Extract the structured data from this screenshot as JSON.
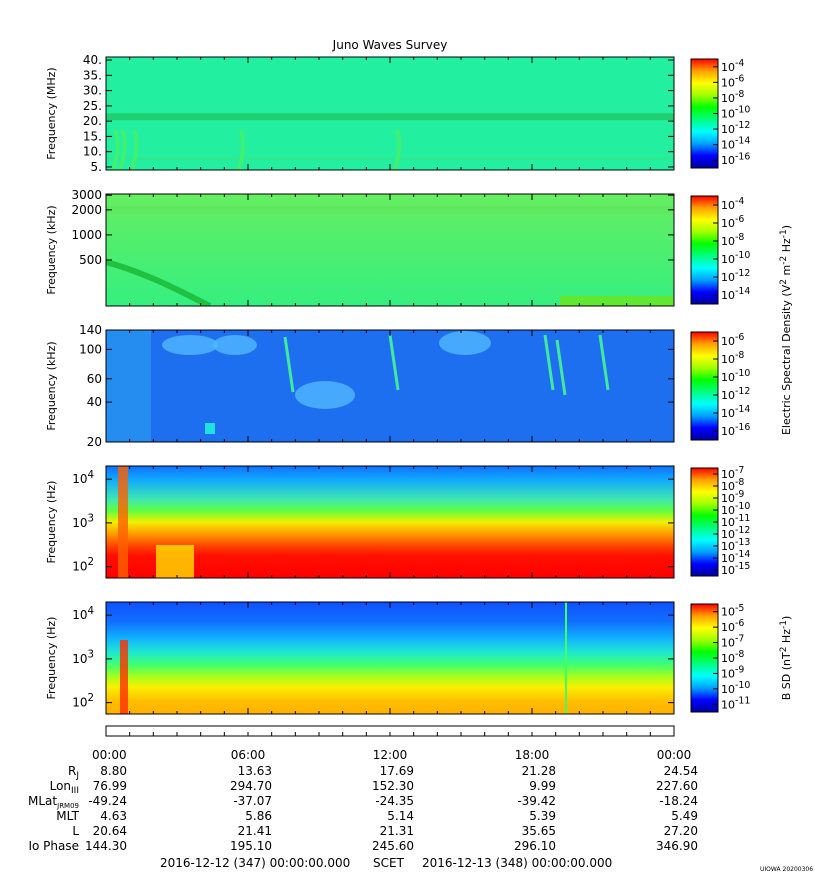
{
  "chart_data": {
    "type": "heatmap",
    "title": "Juno Waves Survey",
    "panels": [
      {
        "id": "hfr-high",
        "ylabel": "Frequency (MHz)",
        "yscale": "linear",
        "ylim": [
          4,
          41
        ],
        "yticks": [
          "40.",
          "35.",
          "30.",
          "25.",
          "20.",
          "15.",
          "10.",
          "5."
        ],
        "ytick_values": [
          40,
          35,
          30,
          25,
          20,
          15,
          10,
          5
        ],
        "colorbar": {
          "ticks_base": [
            "10",
            "10",
            "10",
            "10",
            "10",
            "10",
            "10"
          ],
          "ticks_exp": [
            "-4",
            "-6",
            "-8",
            "-10",
            "-12",
            "-14",
            "-16"
          ],
          "range_log10": [
            -16.5,
            -3.5
          ],
          "colormap": [
            "#0000a0",
            "#0000ff",
            "#00a0ff",
            "#00ffff",
            "#00ff80",
            "#00ff00",
            "#a0ff00",
            "#ffff00",
            "#ffa000",
            "#ff0000"
          ]
        },
        "background_color": "#22f0a0"
      },
      {
        "id": "hfr-low",
        "ylabel": "Frequency (kHz)",
        "yscale": "log",
        "ylim": [
          140,
          3100
        ],
        "yticks": [
          "3000",
          "2000",
          "1000",
          "500"
        ],
        "ytick_values": [
          3000,
          2000,
          1000,
          500
        ],
        "colorbar": {
          "ticks_base": [
            "10",
            "10",
            "10",
            "10",
            "10",
            "10"
          ],
          "ticks_exp": [
            "-4",
            "-6",
            "-8",
            "-10",
            "-12",
            "-14"
          ],
          "range_log10": [
            -15,
            -3
          ],
          "label_base": "Electric Spectral Density (V",
          "label_parts": [
            "2",
            " m",
            "-2",
            " Hz",
            "-1",
            ")"
          ]
        },
        "background_color": "#40ee78"
      },
      {
        "id": "lfr-high",
        "ylabel": "Frequency (kHz)",
        "yscale": "log",
        "ylim": [
          20,
          140
        ],
        "yticks": [
          "140",
          "100",
          "60",
          "40",
          "20"
        ],
        "ytick_values": [
          140,
          100,
          60,
          40,
          20
        ],
        "colorbar": {
          "ticks_base": [
            "10",
            "10",
            "10",
            "10",
            "10",
            "10"
          ],
          "ticks_exp": [
            "-6",
            "-8",
            "-10",
            "-12",
            "-14",
            "-16"
          ],
          "range_log10": [
            -16.5,
            -5.5
          ]
        },
        "background_color": "#1e6ef0"
      },
      {
        "id": "lfr-low-e",
        "ylabel": "Frequency (Hz)",
        "yscale": "log",
        "ylim": [
          55,
          20000
        ],
        "yticks_base": [
          "10",
          "10",
          "10"
        ],
        "yticks_exp": [
          "4",
          "3",
          "2"
        ],
        "ytick_values": [
          10000,
          1000,
          100
        ],
        "colorbar": {
          "ticks_base": [
            "10",
            "10",
            "10",
            "10",
            "10",
            "10",
            "10",
            "10",
            "10"
          ],
          "ticks_exp": [
            "-7",
            "-8",
            "-9",
            "-10",
            "-11",
            "-12",
            "-13",
            "-14",
            "-15"
          ],
          "range_log10": [
            -15,
            -7
          ]
        }
      },
      {
        "id": "lfr-low-b",
        "ylabel": "Frequency (Hz)",
        "yscale": "log",
        "ylim": [
          55,
          20000
        ],
        "yticks_base": [
          "10",
          "10",
          "10"
        ],
        "yticks_exp": [
          "4",
          "3",
          "2"
        ],
        "ytick_values": [
          10000,
          1000,
          100
        ],
        "colorbar": {
          "ticks_base": [
            "10",
            "10",
            "10",
            "10",
            "10",
            "10",
            "10"
          ],
          "ticks_exp": [
            "-5",
            "-6",
            "-7",
            "-8",
            "-9",
            "-10",
            "-11"
          ],
          "range_log10": [
            -11,
            -4.5
          ],
          "label_base": "B SD (nT",
          "label_parts": [
            "2",
            " Hz",
            "-1",
            ")"
          ]
        }
      }
    ],
    "x_ticks": [
      "00:00",
      "06:00",
      "12:00",
      "18:00",
      "00:00"
    ],
    "x_hours": [
      0,
      6,
      12,
      18,
      24
    ],
    "ephemeris": [
      {
        "label": "R",
        "sub": "J",
        "values": [
          "8.80",
          "13.63",
          "17.69",
          "21.28",
          "24.54"
        ]
      },
      {
        "label": "Lon",
        "sub": "III",
        "values": [
          "76.99",
          "294.70",
          "152.30",
          "9.99",
          "227.60"
        ]
      },
      {
        "label": "MLat",
        "sub": "JRM09",
        "values": [
          "-49.24",
          "-37.07",
          "-24.35",
          "-39.42",
          "-18.24"
        ]
      },
      {
        "label": "MLT",
        "sub": "",
        "values": [
          "4.63",
          "5.86",
          "5.14",
          "5.39",
          "5.49"
        ]
      },
      {
        "label": "L",
        "sub": "",
        "values": [
          "20.64",
          "21.41",
          "21.31",
          "35.65",
          "27.20"
        ]
      },
      {
        "label": "Io Phase",
        "sub": "",
        "values": [
          "144.30",
          "195.10",
          "245.60",
          "296.10",
          "346.90"
        ]
      }
    ],
    "footer": {
      "start": "2016-12-12 (347) 00:00:00.000",
      "scet": "SCET",
      "end": "2016-12-13 (348) 00:00:00.000"
    },
    "credit": "UIOWA 20200306"
  }
}
